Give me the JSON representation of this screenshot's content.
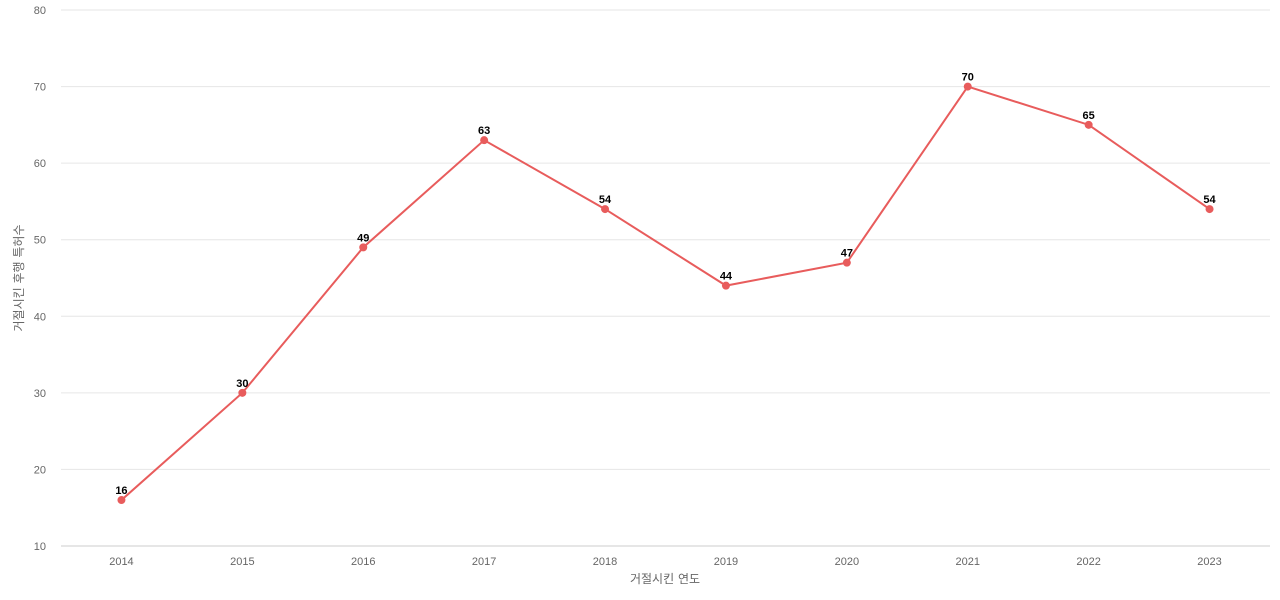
{
  "chart_data": {
    "type": "line",
    "title": "",
    "xlabel": "거절시킨 연도",
    "ylabel": "거절시킨 후행 특허수",
    "categories": [
      "2014",
      "2015",
      "2016",
      "2017",
      "2018",
      "2019",
      "2020",
      "2021",
      "2022",
      "2023"
    ],
    "series": [
      {
        "values": [
          16,
          30,
          49,
          63,
          54,
          44,
          47,
          70,
          65,
          54
        ],
        "color": "#e85c5c"
      }
    ],
    "ylim": [
      10,
      80
    ],
    "yticks": [
      10,
      20,
      30,
      40,
      50,
      60,
      70,
      80
    ],
    "grid": true,
    "legend": "none",
    "data_labels": true
  }
}
